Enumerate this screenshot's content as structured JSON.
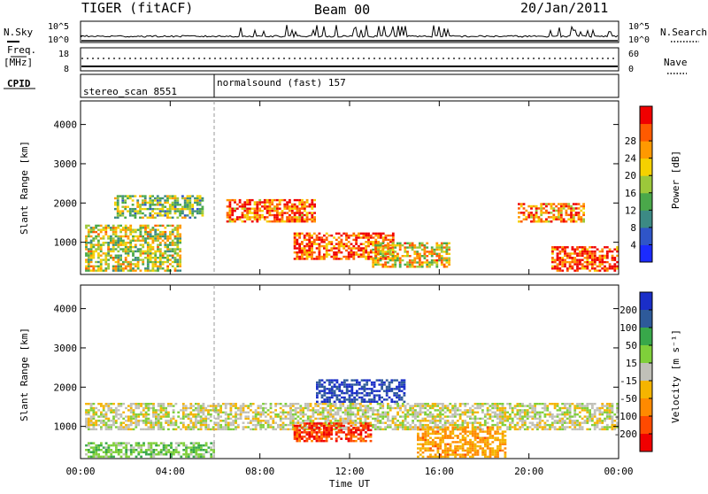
{
  "header": {
    "radar": "TIGER (fitACF)",
    "beam": "Beam 00",
    "date": "20/Jan/2011"
  },
  "strips": {
    "nsky_label": "N.Sky",
    "nsky_ticks": [
      "10^5",
      "10^0"
    ],
    "nsearch_label": "N.Search",
    "freq_label": "Freq.",
    "freq_unit": "[MHz]",
    "freq_ticks": [
      "18",
      "8"
    ],
    "nave_ticks": [
      "60",
      "0"
    ],
    "nave_label": "Nave",
    "cpid_label": "CPID",
    "cpid_entries": [
      {
        "name": "stereo_scan 8551",
        "start_hour": 0
      },
      {
        "name": "normalsound (fast) 157",
        "start_hour": 6
      }
    ]
  },
  "chart_data": [
    {
      "type": "heatmap",
      "title": "",
      "quantity": "Power",
      "ylabel": "Slant Range [km]",
      "xlabel": "",
      "x_ticks": [
        "00:00",
        "04:00",
        "08:00",
        "12:00",
        "16:00",
        "20:00",
        "00:00"
      ],
      "y_ticks": [
        "1000",
        "2000",
        "3000",
        "4000"
      ],
      "xlim_hours": [
        0,
        24
      ],
      "ylim_km": [
        180,
        4600
      ],
      "colorbar": {
        "label": "Power [dB]",
        "ticks": [
          "4",
          "8",
          "12",
          "16",
          "20",
          "24",
          "28"
        ],
        "range": [
          0,
          32
        ],
        "colors": [
          "#1b2bff",
          "#2f55c8",
          "#3c8a84",
          "#4aa84a",
          "#9cc83a",
          "#f5d100",
          "#ff9900",
          "#ff5a00",
          "#f00000"
        ]
      },
      "echo_regions": [
        {
          "t0": 0.2,
          "t1": 4.5,
          "r0": 250,
          "r1": 1450,
          "level": 0.55
        },
        {
          "t0": 1.5,
          "t1": 5.5,
          "r0": 1600,
          "r1": 2200,
          "level": 0.45
        },
        {
          "t0": 6.5,
          "t1": 10.5,
          "r0": 1500,
          "r1": 2100,
          "level": 0.85
        },
        {
          "t0": 9.5,
          "t1": 14.0,
          "r0": 550,
          "r1": 1250,
          "level": 0.9
        },
        {
          "t0": 13.0,
          "t1": 16.5,
          "r0": 350,
          "r1": 1000,
          "level": 0.65
        },
        {
          "t0": 19.5,
          "t1": 22.5,
          "r0": 1500,
          "r1": 2000,
          "level": 0.8
        },
        {
          "t0": 21.0,
          "t1": 24.0,
          "r0": 250,
          "r1": 900,
          "level": 0.95
        }
      ]
    },
    {
      "type": "heatmap",
      "title": "",
      "quantity": "Velocity",
      "ylabel": "Slant Range [km]",
      "xlabel": "Time UT",
      "x_ticks": [
        "00:00",
        "04:00",
        "08:00",
        "12:00",
        "16:00",
        "20:00",
        "00:00"
      ],
      "y_ticks": [
        "1000",
        "2000",
        "3000",
        "4000"
      ],
      "xlim_hours": [
        0,
        24
      ],
      "ylim_km": [
        180,
        4600
      ],
      "colorbar": {
        "label": "Velocity [m s⁻¹]",
        "ticks": [
          "200",
          "100",
          "50",
          "15",
          "-15",
          "-50",
          "-100",
          "-200"
        ],
        "range": [
          -250,
          250
        ],
        "colors": [
          "#1a2ec8",
          "#2e5a9a",
          "#38a84a",
          "#7fcf3a",
          "#c0c0b8",
          "#f5b400",
          "#ff8a00",
          "#ff4a00",
          "#f00000"
        ]
      },
      "echo_regions": [
        {
          "t0": 0.2,
          "t1": 24.0,
          "r0": 900,
          "r1": 1600,
          "level": 0.0
        },
        {
          "t0": 0.2,
          "t1": 6.0,
          "r0": 200,
          "r1": 600,
          "level": 0.3
        },
        {
          "t0": 9.5,
          "t1": 13.0,
          "r0": 600,
          "r1": 1100,
          "level": -0.8
        },
        {
          "t0": 10.5,
          "t1": 14.5,
          "r0": 1600,
          "r1": 2200,
          "level": 0.9
        },
        {
          "t0": 15.0,
          "t1": 19.0,
          "r0": 200,
          "r1": 1000,
          "level": -0.4
        }
      ]
    }
  ]
}
